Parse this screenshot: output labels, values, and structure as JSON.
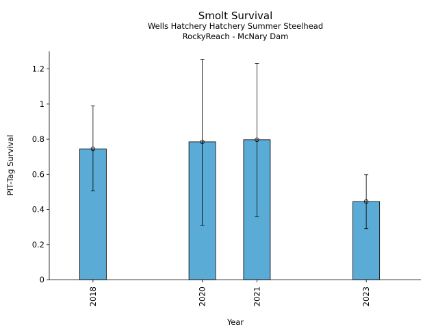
{
  "chart_data": {
    "type": "bar",
    "title": "Smolt Survival",
    "subtitle": [
      "Wells Hatchery Hatchery Summer Steelhead",
      "RockyReach - McNary Dam"
    ],
    "xlabel": "Year",
    "ylabel": "PIT-Tag Survival",
    "x": [
      2018,
      2020,
      2021,
      2023
    ],
    "categories": [
      "2018",
      "2020",
      "2021",
      "2023"
    ],
    "values": [
      0.745,
      0.785,
      0.797,
      0.445
    ],
    "error_low": [
      0.505,
      0.31,
      0.36,
      0.29
    ],
    "error_high": [
      0.99,
      1.255,
      1.232,
      0.598
    ],
    "ylim": [
      0,
      1.3
    ],
    "xlim": [
      2017.2,
      2024.0
    ],
    "yticks": [
      0,
      0.2,
      0.4,
      0.6,
      0.8,
      1.0,
      1.2
    ],
    "ytick_labels": [
      "0",
      "0.2",
      "0.4",
      "0.6",
      "0.8",
      "1",
      "1.2"
    ],
    "grid": false,
    "bar_color": "#5aabd6",
    "edge_color": "#000000"
  }
}
